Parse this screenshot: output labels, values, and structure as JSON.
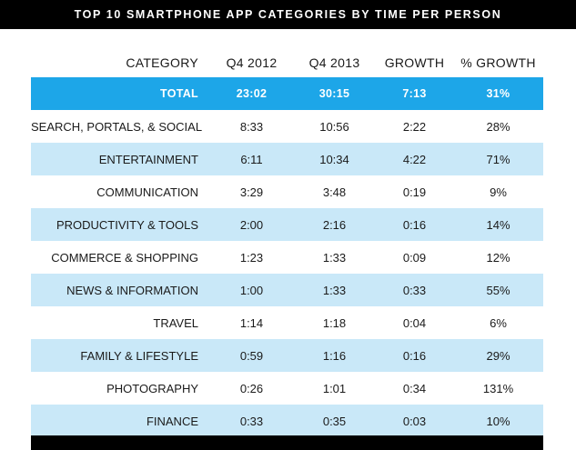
{
  "title": "TOP 10 SMARTPHONE APP CATEGORIES BY TIME PER PERSON",
  "chart_data": {
    "type": "table",
    "title": "TOP 10 SMARTPHONE APP CATEGORIES BY TIME PER PERSON",
    "columns": [
      "CATEGORY",
      "Q4 2012",
      "Q4 2013",
      "GROWTH",
      "% GROWTH"
    ],
    "total": [
      "TOTAL",
      "23:02",
      "30:15",
      "7:13",
      "31%"
    ],
    "rows": [
      [
        "SEARCH, PORTALS, & SOCIAL",
        "8:33",
        "10:56",
        "2:22",
        "28%"
      ],
      [
        "ENTERTAINMENT",
        "6:11",
        "10:34",
        "4:22",
        "71%"
      ],
      [
        "COMMUNICATION",
        "3:29",
        "3:48",
        "0:19",
        "9%"
      ],
      [
        "PRODUCTIVITY & TOOLS",
        "2:00",
        "2:16",
        "0:16",
        "14%"
      ],
      [
        "COMMERCE & SHOPPING",
        "1:23",
        "1:33",
        "0:09",
        "12%"
      ],
      [
        "NEWS & INFORMATION",
        "1:00",
        "1:33",
        "0:33",
        "55%"
      ],
      [
        "TRAVEL",
        "1:14",
        "1:18",
        "0:04",
        "6%"
      ],
      [
        "FAMILY & LIFESTYLE",
        "0:59",
        "1:16",
        "0:16",
        "29%"
      ],
      [
        "PHOTOGRAPHY",
        "0:26",
        "1:01",
        "0:34",
        "131%"
      ],
      [
        "FINANCE",
        "0:33",
        "0:35",
        "0:03",
        "10%"
      ]
    ]
  },
  "colors": {
    "title_bar": "#000000",
    "total_row": "#1da6e8",
    "shaded_row": "#c9e8f8",
    "text": "#1a1a1a"
  }
}
